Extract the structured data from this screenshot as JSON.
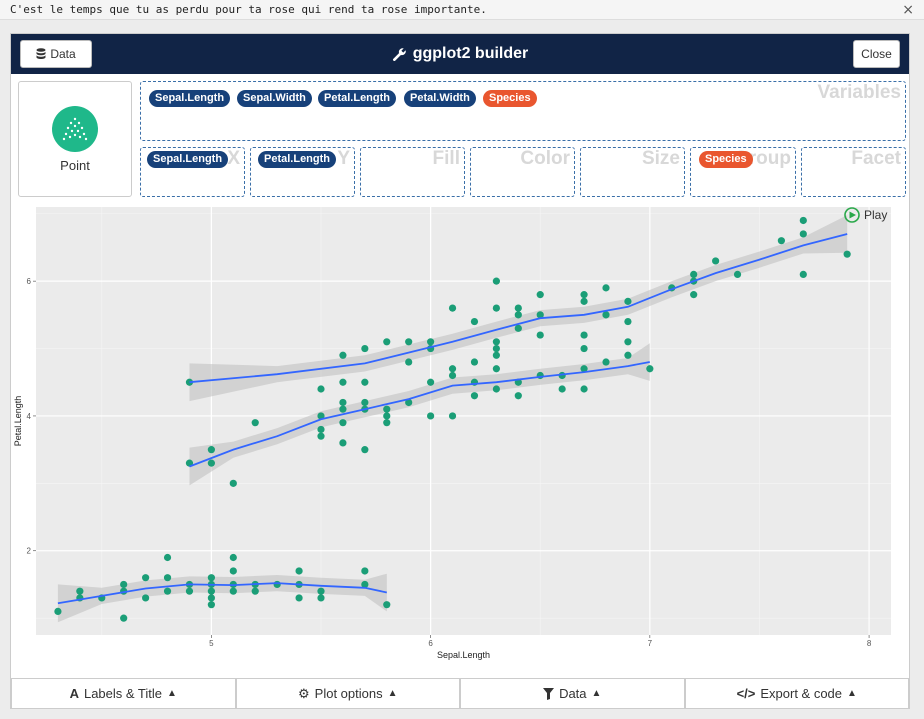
{
  "topbar": {
    "message": "C'est le temps que tu as perdu pour ta rose qui rend ta rose importante.",
    "close_glyph": "×"
  },
  "header": {
    "data_label": "Data",
    "title": "ggplot2 builder",
    "close_label": "Close"
  },
  "geom": {
    "label": "Point",
    "icon": "scatter-icon",
    "icon_color": "#1fb88a"
  },
  "zones": {
    "variables": {
      "title": "Variables",
      "items": [
        "Sepal.Length",
        "Sepal.Width",
        "Petal.Length",
        "Petal.Width",
        "Species"
      ]
    },
    "x": {
      "title": "X",
      "value": "Sepal.Length"
    },
    "y": {
      "title": "Y",
      "value": "Petal.Length"
    },
    "fill": {
      "title": "Fill"
    },
    "color": {
      "title": "Color"
    },
    "size": {
      "title": "Size"
    },
    "group": {
      "title": "Group",
      "value": "Species"
    },
    "facet": {
      "title": "Facet"
    }
  },
  "play_label": "Play",
  "chart_data": {
    "type": "scatter",
    "xlabel": "Sepal.Length",
    "ylabel": "Petal.Length",
    "xlim": [
      4.2,
      8.1
    ],
    "ylim": [
      0.75,
      7.1
    ],
    "xticks": [
      5,
      6,
      7,
      8
    ],
    "yticks": [
      2,
      4,
      6
    ],
    "point_color": "#1b9e77",
    "smooth_color": "#3366ff",
    "series": [
      {
        "points": [
          [
            4.3,
            1.1
          ],
          [
            4.4,
            1.4
          ],
          [
            4.4,
            1.3
          ],
          [
            4.5,
            1.3
          ],
          [
            4.6,
            1.4
          ],
          [
            4.6,
            1.5
          ],
          [
            4.6,
            1.0
          ],
          [
            4.7,
            1.6
          ],
          [
            4.7,
            1.3
          ],
          [
            4.8,
            1.9
          ],
          [
            4.8,
            1.6
          ],
          [
            4.8,
            1.4
          ],
          [
            4.9,
            1.5
          ],
          [
            4.9,
            1.4
          ],
          [
            5.0,
            1.6
          ],
          [
            5.0,
            1.5
          ],
          [
            5.0,
            1.4
          ],
          [
            5.0,
            1.3
          ],
          [
            5.0,
            1.2
          ],
          [
            5.1,
            1.9
          ],
          [
            5.1,
            1.7
          ],
          [
            5.1,
            1.5
          ],
          [
            5.1,
            1.4
          ],
          [
            5.2,
            1.5
          ],
          [
            5.2,
            1.4
          ],
          [
            5.3,
            1.5
          ],
          [
            5.4,
            1.7
          ],
          [
            5.4,
            1.5
          ],
          [
            5.4,
            1.3
          ],
          [
            5.5,
            1.4
          ],
          [
            5.5,
            1.3
          ],
          [
            5.7,
            1.7
          ],
          [
            5.7,
            1.5
          ],
          [
            5.8,
            1.2
          ]
        ],
        "smooth": [
          [
            4.3,
            1.22
          ],
          [
            4.5,
            1.33
          ],
          [
            4.7,
            1.44
          ],
          [
            4.9,
            1.5
          ],
          [
            5.1,
            1.49
          ],
          [
            5.3,
            1.52
          ],
          [
            5.5,
            1.48
          ],
          [
            5.7,
            1.45
          ],
          [
            5.8,
            1.38
          ]
        ]
      },
      {
        "points": [
          [
            4.9,
            3.3
          ],
          [
            5.0,
            3.5
          ],
          [
            5.0,
            3.3
          ],
          [
            5.1,
            3.0
          ],
          [
            5.2,
            3.9
          ],
          [
            5.5,
            4.4
          ],
          [
            5.5,
            4.0
          ],
          [
            5.5,
            3.8
          ],
          [
            5.5,
            3.7
          ],
          [
            5.6,
            4.5
          ],
          [
            5.6,
            4.2
          ],
          [
            5.6,
            4.1
          ],
          [
            5.6,
            3.9
          ],
          [
            5.6,
            3.6
          ],
          [
            5.7,
            4.5
          ],
          [
            5.7,
            4.2
          ],
          [
            5.7,
            4.1
          ],
          [
            5.7,
            3.5
          ],
          [
            5.8,
            4.1
          ],
          [
            5.8,
            4.0
          ],
          [
            5.8,
            3.9
          ],
          [
            5.9,
            4.8
          ],
          [
            5.9,
            4.2
          ],
          [
            6.0,
            4.5
          ],
          [
            6.0,
            4.0
          ],
          [
            6.0,
            5.1
          ],
          [
            6.1,
            4.7
          ],
          [
            6.1,
            4.6
          ],
          [
            6.1,
            4.0
          ],
          [
            6.2,
            4.5
          ],
          [
            6.2,
            4.3
          ],
          [
            6.3,
            4.9
          ],
          [
            6.3,
            4.7
          ],
          [
            6.3,
            4.4
          ],
          [
            6.4,
            4.5
          ],
          [
            6.4,
            4.3
          ],
          [
            6.5,
            4.6
          ],
          [
            6.6,
            4.6
          ],
          [
            6.6,
            4.4
          ],
          [
            6.7,
            5.0
          ],
          [
            6.7,
            4.7
          ],
          [
            6.7,
            4.4
          ],
          [
            6.8,
            4.8
          ],
          [
            6.9,
            4.9
          ],
          [
            7.0,
            4.7
          ]
        ],
        "smooth": [
          [
            4.9,
            3.25
          ],
          [
            5.1,
            3.5
          ],
          [
            5.3,
            3.7
          ],
          [
            5.5,
            3.95
          ],
          [
            5.7,
            4.1
          ],
          [
            5.9,
            4.25
          ],
          [
            6.1,
            4.45
          ],
          [
            6.3,
            4.5
          ],
          [
            6.5,
            4.58
          ],
          [
            6.7,
            4.65
          ],
          [
            6.9,
            4.74
          ],
          [
            7.0,
            4.8
          ]
        ]
      },
      {
        "points": [
          [
            4.9,
            4.5
          ],
          [
            5.6,
            4.9
          ],
          [
            5.7,
            5.0
          ],
          [
            5.8,
            5.1
          ],
          [
            5.9,
            5.1
          ],
          [
            6.0,
            5.0
          ],
          [
            6.1,
            5.6
          ],
          [
            6.2,
            5.4
          ],
          [
            6.2,
            4.8
          ],
          [
            6.3,
            6.0
          ],
          [
            6.3,
            5.6
          ],
          [
            6.3,
            5.1
          ],
          [
            6.3,
            5.0
          ],
          [
            6.4,
            5.6
          ],
          [
            6.4,
            5.5
          ],
          [
            6.4,
            5.3
          ],
          [
            6.5,
            5.8
          ],
          [
            6.5,
            5.5
          ],
          [
            6.5,
            5.2
          ],
          [
            6.7,
            5.8
          ],
          [
            6.7,
            5.7
          ],
          [
            6.7,
            5.2
          ],
          [
            6.8,
            5.5
          ],
          [
            6.8,
            5.9
          ],
          [
            6.9,
            5.7
          ],
          [
            6.9,
            5.4
          ],
          [
            6.9,
            5.1
          ],
          [
            7.1,
            5.9
          ],
          [
            7.2,
            6.1
          ],
          [
            7.2,
            6.0
          ],
          [
            7.2,
            5.8
          ],
          [
            7.3,
            6.3
          ],
          [
            7.4,
            6.1
          ],
          [
            7.6,
            6.6
          ],
          [
            7.7,
            6.9
          ],
          [
            7.7,
            6.7
          ],
          [
            7.7,
            6.1
          ],
          [
            7.9,
            6.4
          ]
        ],
        "smooth": [
          [
            4.9,
            4.5
          ],
          [
            5.3,
            4.62
          ],
          [
            5.7,
            4.78
          ],
          [
            6.1,
            5.1
          ],
          [
            6.3,
            5.28
          ],
          [
            6.5,
            5.45
          ],
          [
            6.7,
            5.5
          ],
          [
            6.9,
            5.62
          ],
          [
            7.1,
            5.88
          ],
          [
            7.3,
            6.12
          ],
          [
            7.5,
            6.32
          ],
          [
            7.7,
            6.53
          ],
          [
            7.9,
            6.7
          ]
        ]
      }
    ]
  },
  "footer": {
    "labels_title": "Labels & Title",
    "plot_options": "Plot options",
    "data": "Data",
    "export_code": "Export & code"
  }
}
